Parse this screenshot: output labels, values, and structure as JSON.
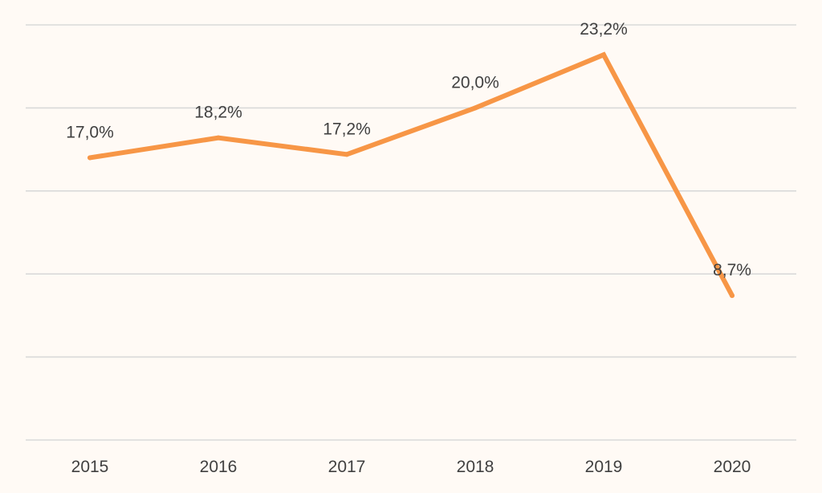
{
  "chart_data": {
    "type": "line",
    "title": "",
    "xlabel": "",
    "ylabel": "",
    "categories": [
      "2015",
      "2016",
      "2017",
      "2018",
      "2019",
      "2020"
    ],
    "series": [
      {
        "values": [
          17.0,
          18.2,
          17.2,
          20.0,
          23.2,
          8.7
        ],
        "labels": [
          "17,0%",
          "18,2%",
          "17,2%",
          "20,0%",
          "23,2%",
          "8,7%"
        ],
        "color": "#f79646"
      }
    ],
    "ylim": [
      0,
      25
    ],
    "grid": true,
    "legend": "none"
  }
}
